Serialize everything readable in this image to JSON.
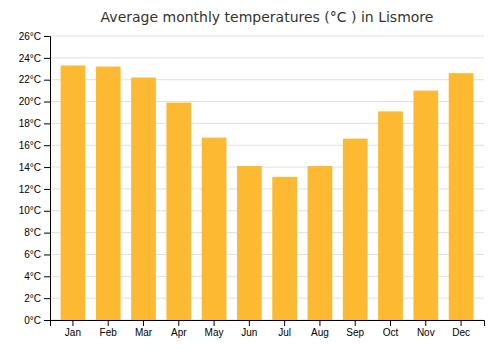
{
  "chart_data": {
    "type": "bar",
    "title": "Average monthly temperatures (°C ) in Lismore",
    "categories": [
      "Jan",
      "Feb",
      "Mar",
      "Apr",
      "May",
      "Jun",
      "Jul",
      "Aug",
      "Sep",
      "Oct",
      "Nov",
      "Dec"
    ],
    "values": [
      23.3,
      23.2,
      22.2,
      19.9,
      16.7,
      14.1,
      13.1,
      14.1,
      16.6,
      19.1,
      21.0,
      22.6
    ],
    "color": "#FDB931",
    "ylim": [
      0,
      26
    ],
    "yticks": [
      {
        "value": 0,
        "label": "0°C"
      },
      {
        "value": 2,
        "label": "2°C"
      },
      {
        "value": 4,
        "label": "4°C"
      },
      {
        "value": 6,
        "label": "6°C"
      },
      {
        "value": 8,
        "label": "8°C"
      },
      {
        "value": 10,
        "label": "10°C"
      },
      {
        "value": 12,
        "label": "12°C"
      },
      {
        "value": 14,
        "label": "14°C"
      },
      {
        "value": 16,
        "label": "16°C"
      },
      {
        "value": 18,
        "label": "18°C"
      },
      {
        "value": 20,
        "label": "20°C"
      },
      {
        "value": 22,
        "label": "22°C"
      },
      {
        "value": 24,
        "label": "24°C"
      },
      {
        "value": 26,
        "label": "26°C"
      }
    ],
    "grid": true
  }
}
